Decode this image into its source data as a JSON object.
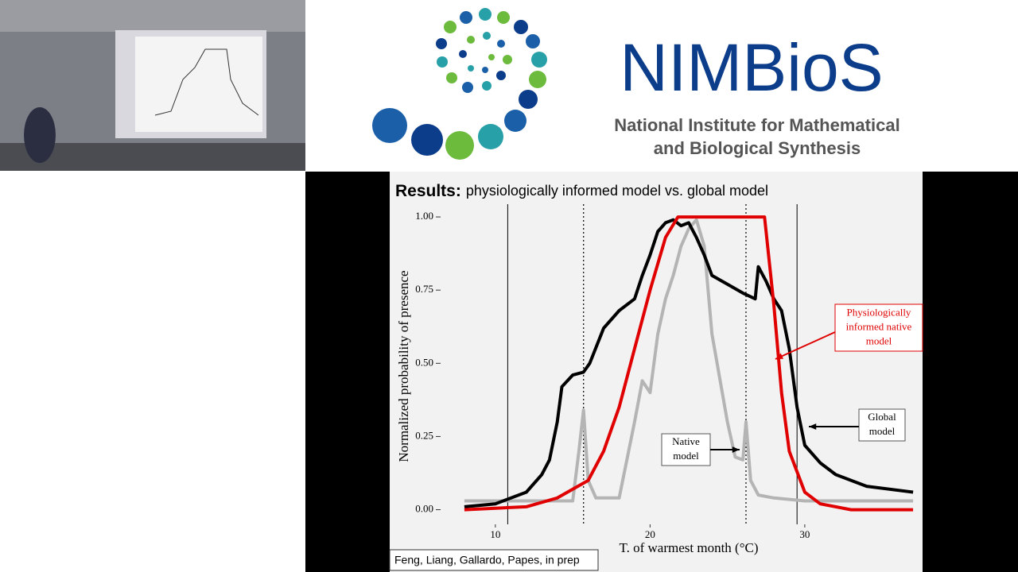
{
  "header": {
    "logo_title": "NIMBioS",
    "logo_subtitle": [
      "National Institute for Mathematical",
      "and Biological Synthesis"
    ]
  },
  "slide": {
    "title_bold": "Results:",
    "title_rest": "physiologically informed model vs. global model",
    "citation": "Feng, Liang, Gallardo, Papes, in prep"
  },
  "annotations": [
    {
      "lines": [
        "Physiologically",
        "informed native",
        "model"
      ],
      "color": "#e00000"
    },
    {
      "lines": [
        "Global",
        "model"
      ],
      "color": "#000000"
    },
    {
      "lines": [
        "Native",
        "model"
      ],
      "color": "#000000"
    }
  ],
  "chart_data": {
    "type": "line",
    "x_label": "T. of warmest month (°C)",
    "y_label": "Normalized probability of presence",
    "xlim": [
      7.9,
      37.1
    ],
    "xticks": [
      10,
      20,
      30
    ],
    "ylim": [
      -0.05,
      1.03
    ],
    "yticks": [
      {
        "value": 0,
        "label": "0.00"
      },
      {
        "value": 0.25,
        "label": "0.25"
      },
      {
        "value": 0.5,
        "label": "0.50"
      },
      {
        "value": 0.75,
        "label": "0.75"
      },
      {
        "value": 1,
        "label": "1.00"
      }
    ],
    "vlines": [
      10.8,
      15.7,
      26.2,
      29.5
    ],
    "vline_styles": [
      "solid",
      "dotted",
      "dotted",
      "solid"
    ],
    "series": [
      {
        "name": "Global model",
        "color": "#000000",
        "x": [
          8,
          10,
          12,
          13,
          13.5,
          14,
          14.3,
          15,
          15.7,
          16.1,
          17,
          18,
          19,
          19.5,
          20,
          20.5,
          21,
          21.5,
          22,
          22.5,
          23,
          23.5,
          24,
          25,
          26,
          26.8,
          27,
          27.5,
          28,
          28.5,
          29,
          29.5,
          30,
          31,
          32,
          34,
          37
        ],
        "values": [
          0.01,
          0.02,
          0.06,
          0.12,
          0.17,
          0.3,
          0.42,
          0.46,
          0.47,
          0.5,
          0.62,
          0.68,
          0.72,
          0.8,
          0.87,
          0.95,
          0.98,
          0.99,
          0.97,
          0.98,
          0.93,
          0.87,
          0.8,
          0.77,
          0.74,
          0.72,
          0.83,
          0.78,
          0.72,
          0.68,
          0.55,
          0.35,
          0.22,
          0.16,
          0.12,
          0.08,
          0.06
        ]
      },
      {
        "name": "Physiologically informed native model",
        "color": "#e00000",
        "x": [
          8,
          12,
          14,
          16,
          17,
          18,
          19,
          20,
          21,
          21.8,
          27.4,
          28,
          28.5,
          29,
          30,
          31,
          33,
          37
        ],
        "values": [
          0,
          0.01,
          0.04,
          0.1,
          0.2,
          0.35,
          0.55,
          0.75,
          0.93,
          1,
          1,
          0.7,
          0.4,
          0.2,
          0.06,
          0.02,
          0,
          0
        ]
      },
      {
        "name": "Native model",
        "color": "#b4b4b4",
        "x": [
          8,
          12,
          15,
          15.4,
          15.7,
          16,
          16.5,
          18,
          19,
          19.5,
          20,
          20.5,
          21,
          21.5,
          22,
          22.5,
          23,
          23.5,
          24,
          24.5,
          25,
          25.5,
          26,
          26.2,
          26.5,
          27,
          28,
          30,
          37
        ],
        "values": [
          0.03,
          0.03,
          0.03,
          0.2,
          0.34,
          0.1,
          0.04,
          0.04,
          0.3,
          0.44,
          0.4,
          0.6,
          0.72,
          0.8,
          0.9,
          0.96,
          0.99,
          0.9,
          0.6,
          0.45,
          0.3,
          0.18,
          0.17,
          0.3,
          0.1,
          0.05,
          0.04,
          0.03,
          0.03
        ]
      }
    ]
  }
}
